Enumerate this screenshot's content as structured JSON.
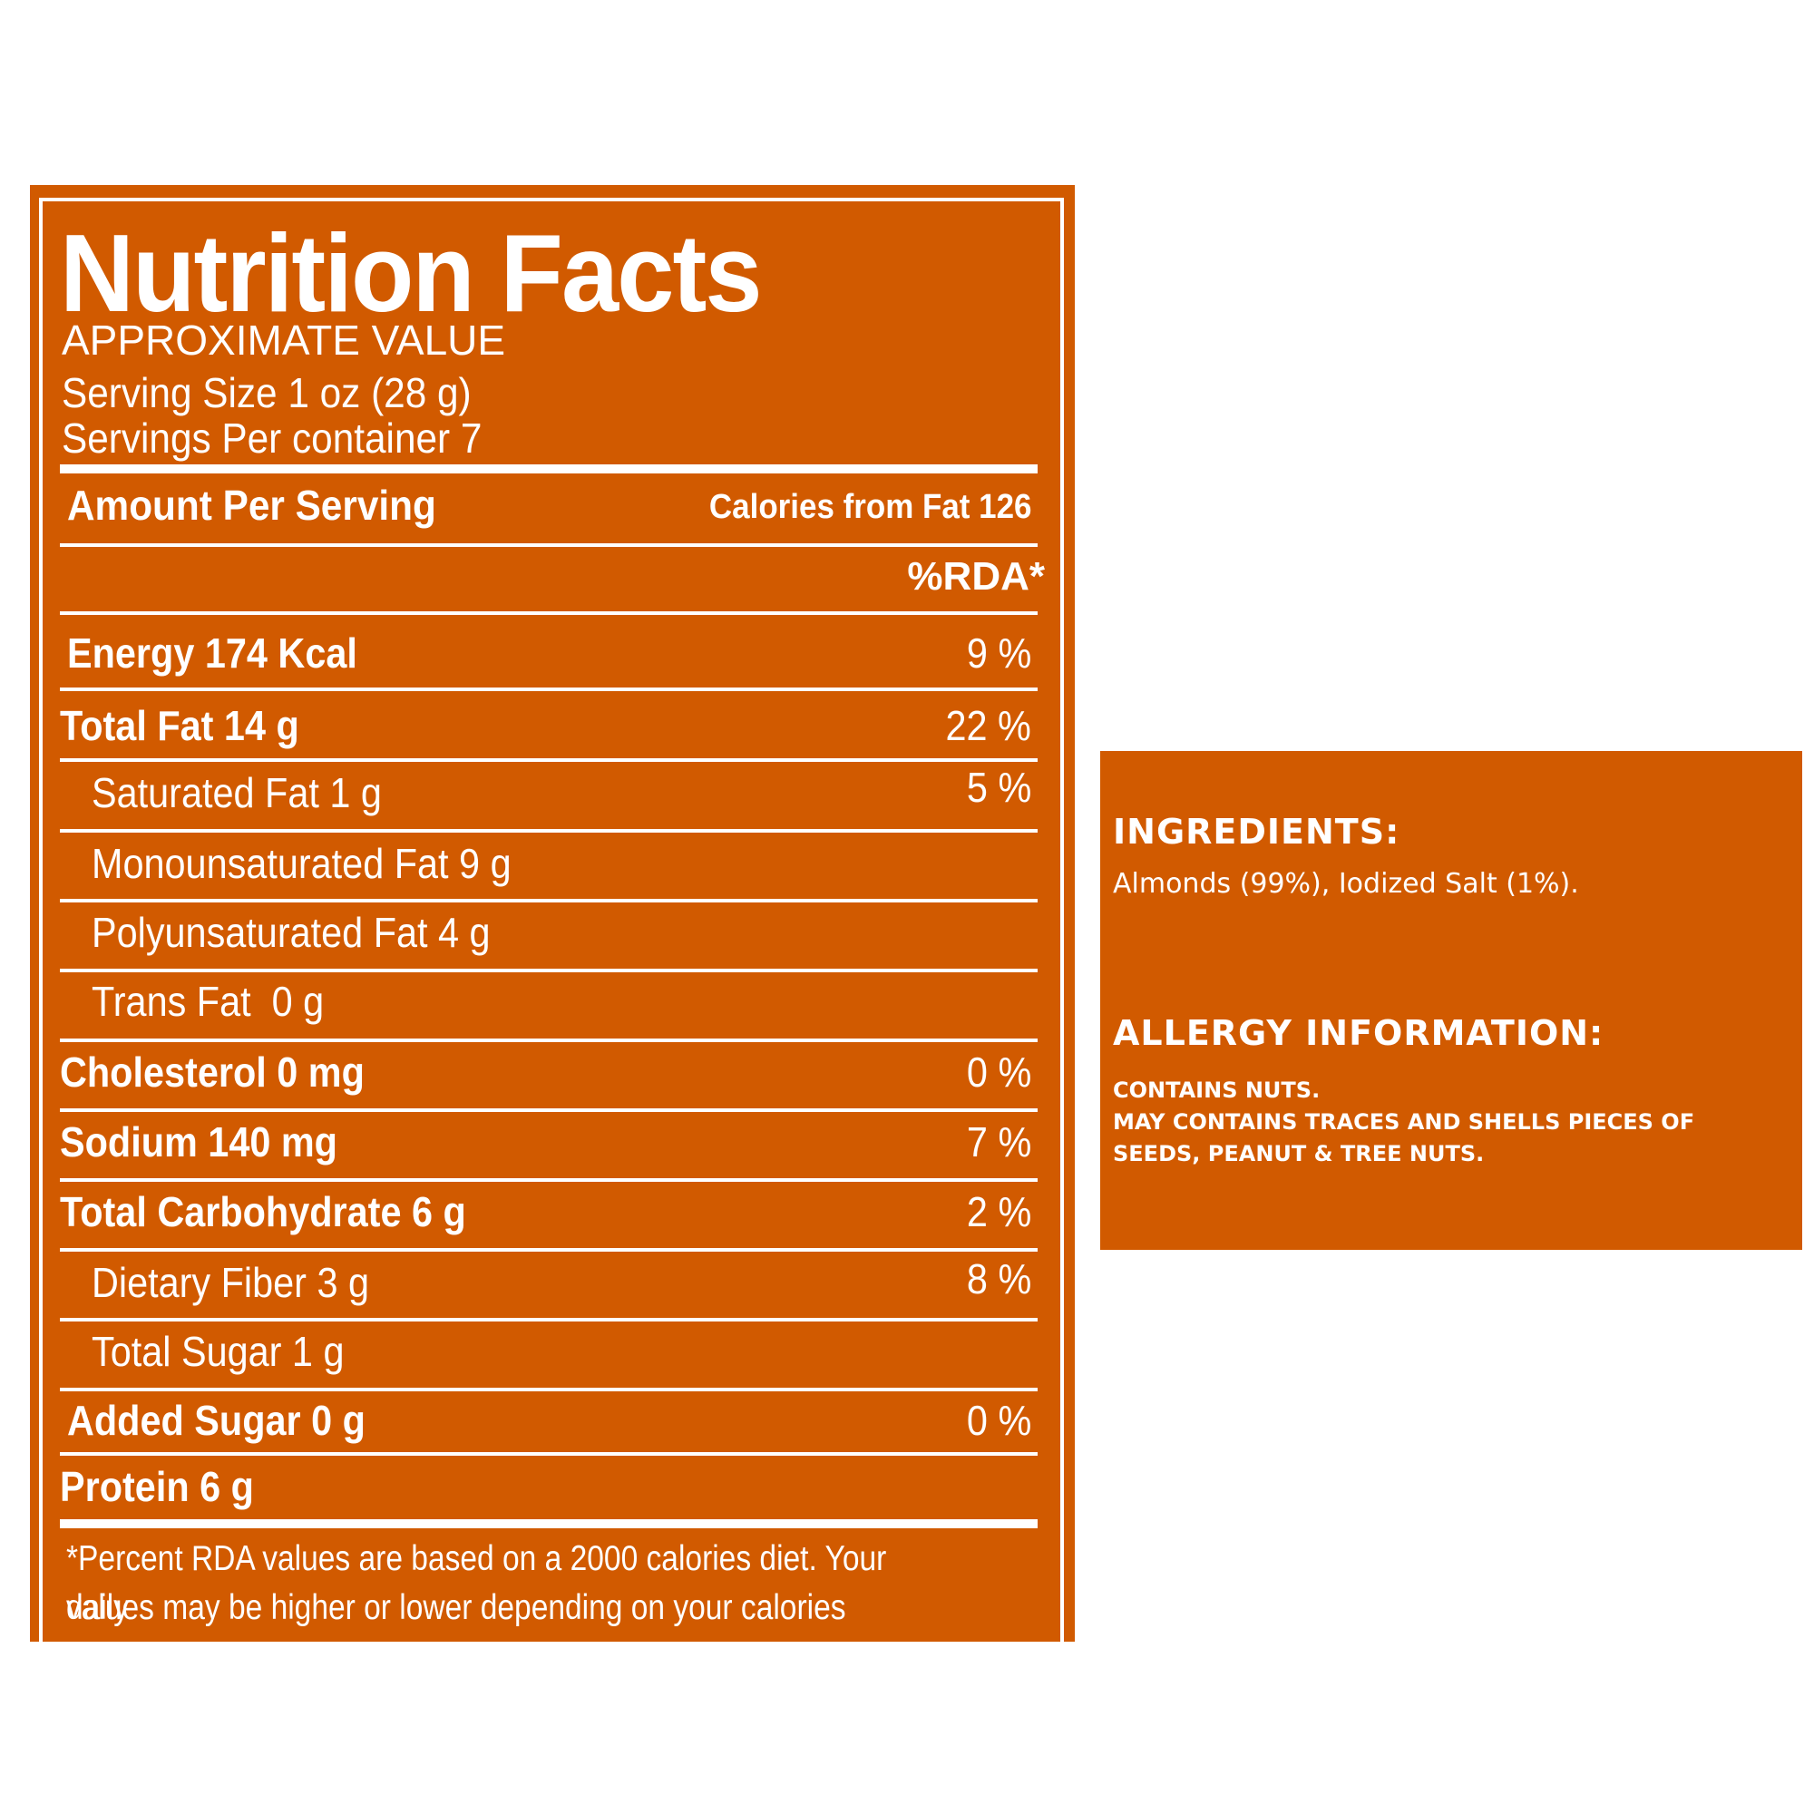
{
  "colors": {
    "panel": "#d15a00",
    "text": "#ffffff",
    "background": "#ffffff"
  },
  "facts": {
    "title": "Nutrition Facts",
    "subtitle": "APPROXIMATE VALUE",
    "serving_size": "Serving Size 1 oz (28 g)",
    "servings_per_container": "Servings Per container 7",
    "amount_per_serving": "Amount Per Serving",
    "calories_from_fat": "Calories from Fat 126",
    "rda_header": "%RDA*",
    "rows": [
      {
        "label": "Energy 174 Kcal",
        "pct": "9 %"
      },
      {
        "label": "Total Fat 14 g",
        "pct": "22 %"
      },
      {
        "label": "Saturated Fat 1 g",
        "pct": "5 %"
      },
      {
        "label": "Monounsaturated Fat 9 g",
        "pct": ""
      },
      {
        "label": "Polyunsaturated Fat 4 g",
        "pct": ""
      },
      {
        "label": "Trans Fat  0 g",
        "pct": ""
      },
      {
        "label": "Cholesterol 0 mg",
        "pct": "0 %"
      },
      {
        "label": "Sodium 140 mg",
        "pct": "7 %"
      },
      {
        "label": "Total Carbohydrate 6 g",
        "pct": "2 %"
      },
      {
        "label": "Dietary Fiber 3 g",
        "pct": "8 %"
      },
      {
        "label": "Total Sugar 1 g",
        "pct": ""
      },
      {
        "label": "Added Sugar 0 g",
        "pct": "0 %"
      },
      {
        "label": "Protein 6 g",
        "pct": ""
      }
    ],
    "footnote_line1": "*Percent RDA values are based on a 2000 calories diet. Your daily",
    "footnote_line2": "values may be higher or lower depending on your calories needs."
  },
  "ingredients": {
    "heading": "INGREDIENTS:",
    "text": "Almonds (99%), Iodized Salt (1%)."
  },
  "allergy": {
    "heading": "ALLERGY INFORMATION:",
    "line1": "CONTAINS NUTS.",
    "line2": "MAY CONTAINS TRACES AND SHELLS PIECES OF",
    "line3": "SEEDS, PEANUT & TREE NUTS."
  }
}
